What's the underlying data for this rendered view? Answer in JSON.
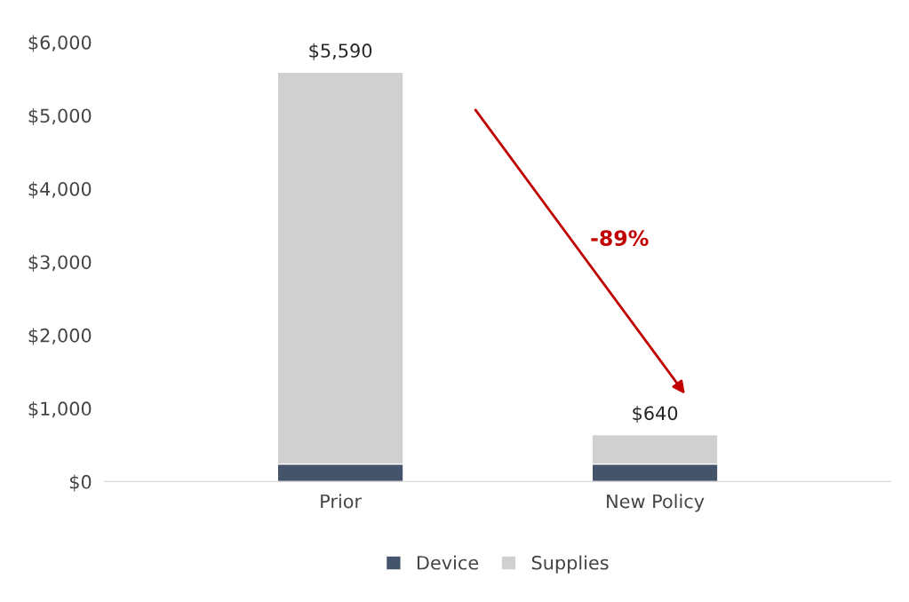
{
  "chart_data": {
    "type": "bar",
    "stacked": true,
    "categories": [
      "Prior",
      "New Policy"
    ],
    "series": [
      {
        "name": "Device",
        "color": "#44546a",
        "values": [
          240,
          240
        ]
      },
      {
        "name": "Supplies",
        "color": "#d0d0d0",
        "values": [
          5350,
          400
        ]
      }
    ],
    "totals": [
      "$5,590",
      "$640"
    ],
    "ylim": [
      0,
      6000
    ],
    "yticks": [
      {
        "value": 0,
        "label": "$0"
      },
      {
        "value": 1000,
        "label": "$1,000"
      },
      {
        "value": 2000,
        "label": "$2,000"
      },
      {
        "value": 3000,
        "label": "$3,000"
      },
      {
        "value": 4000,
        "label": "$4,000"
      },
      {
        "value": 5000,
        "label": "$5,000"
      },
      {
        "value": 6000,
        "label": "$6,000"
      }
    ],
    "annotations": [
      "-89%"
    ],
    "legend": "bottom",
    "grid": false
  }
}
